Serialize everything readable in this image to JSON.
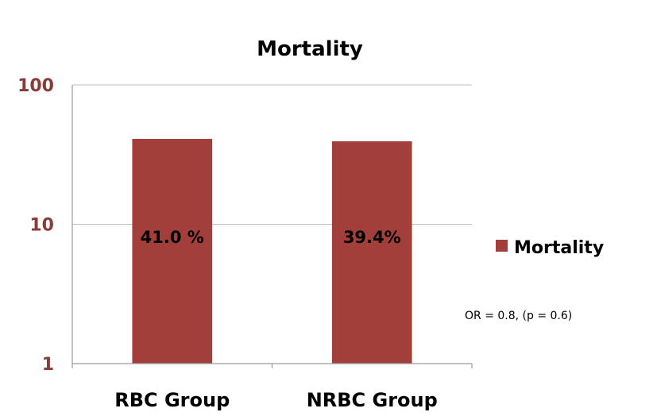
{
  "chart_data": {
    "type": "bar",
    "title": "Mortality",
    "categories": [
      "RBC Group",
      "NRBC Group"
    ],
    "series": [
      {
        "name": "Mortality",
        "values": [
          41.0,
          39.4
        ]
      }
    ],
    "data_labels": [
      "41.0 %",
      "39.4%"
    ],
    "yscale": "log",
    "ylim": [
      1,
      100
    ],
    "yticks": [
      1,
      10,
      100
    ],
    "ytick_labels": [
      "1",
      "10",
      "100"
    ],
    "grid": true,
    "legend": "right",
    "annotation": "OR = 0.8, (p = 0.6)",
    "colors": {
      "bar": "#A23F3A",
      "ytick": "#8B3A36"
    }
  }
}
